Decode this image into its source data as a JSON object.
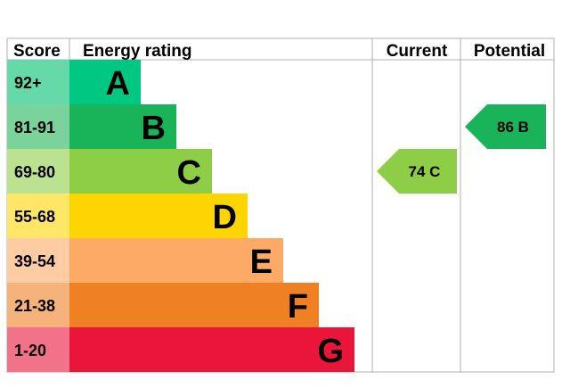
{
  "chart_data": {
    "type": "bar",
    "headers": {
      "score": "Score",
      "rating": "Energy rating",
      "current": "Current",
      "potential": "Potential"
    },
    "bands": [
      {
        "letter": "A",
        "range": "92+",
        "score_min": 92,
        "color": "#00c781",
        "score_bg": "#66d9a9"
      },
      {
        "letter": "B",
        "range": "81-91",
        "score_min": 81,
        "color": "#19b459",
        "score_bg": "#7ad39b"
      },
      {
        "letter": "C",
        "range": "69-80",
        "score_min": 69,
        "color": "#8dce46",
        "score_bg": "#bbe290"
      },
      {
        "letter": "D",
        "range": "55-68",
        "score_min": 55,
        "color": "#ffd500",
        "score_bg": "#ffe666"
      },
      {
        "letter": "E",
        "range": "39-54",
        "score_min": 39,
        "color": "#fcaa65",
        "score_bg": "#fdcca3"
      },
      {
        "letter": "F",
        "range": "21-38",
        "score_min": 21,
        "color": "#ef8023",
        "score_bg": "#f5b37b"
      },
      {
        "letter": "G",
        "range": "1-20",
        "score_min": 1,
        "color": "#e9153b",
        "score_bg": "#f27389"
      }
    ],
    "current": {
      "value": 74,
      "letter": "C",
      "label": "74  C",
      "color": "#8dce46"
    },
    "potential": {
      "value": 86,
      "letter": "B",
      "label": "86  B",
      "color": "#19b459"
    },
    "border_color": "#b0b0b0"
  }
}
